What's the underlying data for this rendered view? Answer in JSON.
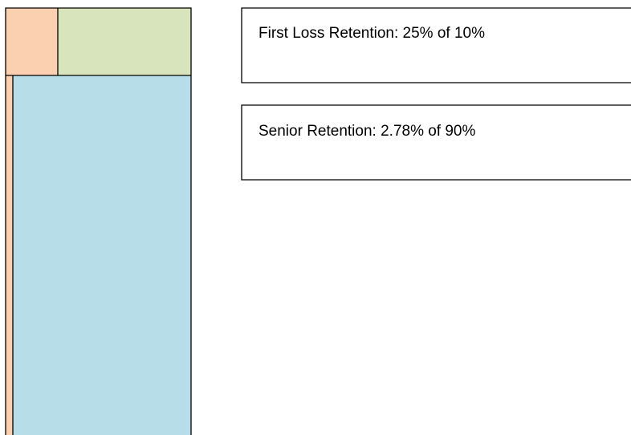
{
  "boxes": [
    {
      "label": "First Loss Retention: 25% of 10%"
    },
    {
      "label": "Senior Retention: 2.78% of 90%"
    }
  ]
}
